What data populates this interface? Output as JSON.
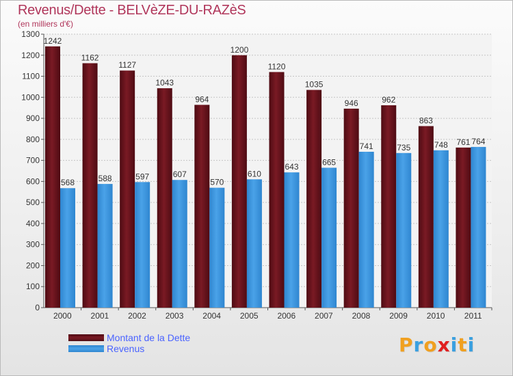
{
  "title": "Revenus/Dette - BELVèZE-DU-RAZèS",
  "subtitle": "(en milliers d'€)",
  "logo": {
    "text": "Proxiti",
    "letters": [
      {
        "ch": "P",
        "color": "#f0a020"
      },
      {
        "ch": "r",
        "color": "#3aa0e0"
      },
      {
        "ch": "o",
        "color": "#f0a020"
      },
      {
        "ch": "x",
        "color": "#e02020"
      },
      {
        "ch": "i",
        "color": "#3aa0e0"
      },
      {
        "ch": "t",
        "color": "#f0a020"
      },
      {
        "ch": "i",
        "color": "#3aa0e0"
      }
    ]
  },
  "colors": {
    "dette": "#7a1a24",
    "revenus": "#4aa2e8",
    "grid": "#c4c4c4",
    "axis": "#555555"
  },
  "chart_data": {
    "type": "bar",
    "title": "Revenus/Dette - BELVèZE-DU-RAZèS",
    "ylabel": "(en milliers d'€)",
    "xlabel": "",
    "categories": [
      "2000",
      "2001",
      "2002",
      "2003",
      "2004",
      "2005",
      "2006",
      "2007",
      "2008",
      "2009",
      "2010",
      "2011"
    ],
    "series": [
      {
        "name": "Montant de la Dette",
        "values": [
          1242,
          1162,
          1127,
          1043,
          964,
          1200,
          1120,
          1035,
          946,
          962,
          863,
          761
        ]
      },
      {
        "name": "Revenus",
        "values": [
          568,
          588,
          597,
          607,
          570,
          610,
          643,
          665,
          741,
          735,
          748,
          764
        ]
      }
    ],
    "ylim": [
      0,
      1300
    ],
    "yticks": [
      0,
      100,
      200,
      300,
      400,
      500,
      600,
      700,
      800,
      900,
      1000,
      1100,
      1200,
      1300
    ],
    "grid": true,
    "legend": "bottom-left"
  }
}
